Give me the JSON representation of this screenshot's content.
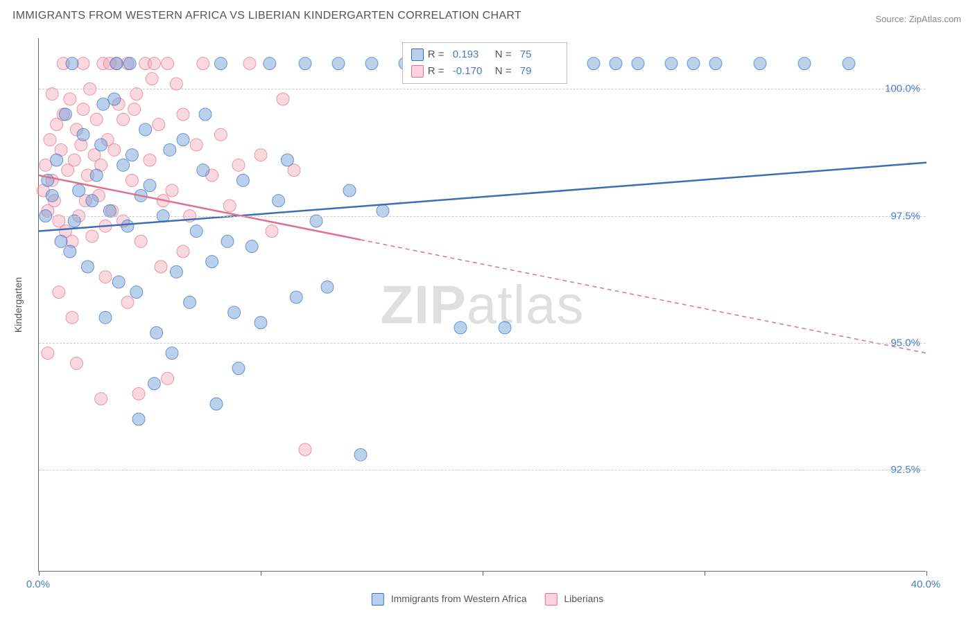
{
  "title": "IMMIGRANTS FROM WESTERN AFRICA VS LIBERIAN KINDERGARTEN CORRELATION CHART",
  "source": "Source: ZipAtlas.com",
  "ylabel": "Kindergarten",
  "watermark_bold": "ZIP",
  "watermark_light": "atlas",
  "chart": {
    "type": "scatter",
    "xlim": [
      0,
      40
    ],
    "ylim": [
      90.5,
      101
    ],
    "xtick_positions": [
      0,
      20,
      40
    ],
    "xtick_labels": [
      "0.0%",
      "",
      "40.0%"
    ],
    "xtick_minor": [
      10,
      30
    ],
    "ytick_positions": [
      92.5,
      95.0,
      97.5,
      100.0
    ],
    "ytick_labels": [
      "92.5%",
      "95.0%",
      "97.5%",
      "100.0%"
    ],
    "background_color": "#ffffff",
    "grid_color": "#cccccc",
    "marker_radius": 9,
    "marker_opacity": 0.45,
    "series": [
      {
        "name": "Immigrants from Western Africa",
        "color": "#6699d8",
        "stroke": "#3d6db5",
        "R": "0.193",
        "N": "75",
        "regression": {
          "x1": 0,
          "y1": 97.2,
          "x2": 40,
          "y2": 98.55,
          "solid_until_x": 40
        },
        "points": [
          [
            0.3,
            97.5
          ],
          [
            0.4,
            98.2
          ],
          [
            0.6,
            97.9
          ],
          [
            0.8,
            98.6
          ],
          [
            1.0,
            97.0
          ],
          [
            1.2,
            99.5
          ],
          [
            1.4,
            96.8
          ],
          [
            1.6,
            97.4
          ],
          [
            1.8,
            98.0
          ],
          [
            2.0,
            99.1
          ],
          [
            2.2,
            96.5
          ],
          [
            2.4,
            97.8
          ],
          [
            2.6,
            98.3
          ],
          [
            2.8,
            98.9
          ],
          [
            3.0,
            95.5
          ],
          [
            3.2,
            97.6
          ],
          [
            3.4,
            99.8
          ],
          [
            3.6,
            96.2
          ],
          [
            3.8,
            98.5
          ],
          [
            4.0,
            97.3
          ],
          [
            4.2,
            98.7
          ],
          [
            4.4,
            96.0
          ],
          [
            4.6,
            97.9
          ],
          [
            4.8,
            99.2
          ],
          [
            5.0,
            98.1
          ],
          [
            5.3,
            95.2
          ],
          [
            5.6,
            97.5
          ],
          [
            5.9,
            98.8
          ],
          [
            6.2,
            96.4
          ],
          [
            6.5,
            99.0
          ],
          [
            6.8,
            95.8
          ],
          [
            7.1,
            97.2
          ],
          [
            7.4,
            98.4
          ],
          [
            7.8,
            96.6
          ],
          [
            8.2,
            100.5
          ],
          [
            8.5,
            97.0
          ],
          [
            8.8,
            95.6
          ],
          [
            9.2,
            98.2
          ],
          [
            9.6,
            96.9
          ],
          [
            10.0,
            95.4
          ],
          [
            10.4,
            100.5
          ],
          [
            10.8,
            97.8
          ],
          [
            11.2,
            98.6
          ],
          [
            11.6,
            95.9
          ],
          [
            12.0,
            100.5
          ],
          [
            12.5,
            97.4
          ],
          [
            13.0,
            96.1
          ],
          [
            13.5,
            100.5
          ],
          [
            14.0,
            98.0
          ],
          [
            14.5,
            92.8
          ],
          [
            15.0,
            100.5
          ],
          [
            15.5,
            97.6
          ],
          [
            16.5,
            100.5
          ],
          [
            17.5,
            100.5
          ],
          [
            19.0,
            95.3
          ],
          [
            21.0,
            95.3
          ],
          [
            25.0,
            100.5
          ],
          [
            26.0,
            100.5
          ],
          [
            27.0,
            100.5
          ],
          [
            28.5,
            100.5
          ],
          [
            29.5,
            100.5
          ],
          [
            30.5,
            100.5
          ],
          [
            32.5,
            100.5
          ],
          [
            34.5,
            100.5
          ],
          [
            36.5,
            100.5
          ],
          [
            4.5,
            93.5
          ],
          [
            5.2,
            94.2
          ],
          [
            6.0,
            94.8
          ],
          [
            2.9,
            99.7
          ],
          [
            3.5,
            100.5
          ],
          [
            4.1,
            100.5
          ],
          [
            1.5,
            100.5
          ],
          [
            7.5,
            99.5
          ],
          [
            8.0,
            93.8
          ],
          [
            9.0,
            94.5
          ]
        ]
      },
      {
        "name": "Liberians",
        "color": "#f4a8b8",
        "stroke": "#e07090",
        "R": "-0.170",
        "N": "79",
        "regression": {
          "x1": 0,
          "y1": 98.3,
          "x2": 40,
          "y2": 94.8,
          "solid_until_x": 14.5
        },
        "points": [
          [
            0.2,
            98.0
          ],
          [
            0.3,
            98.5
          ],
          [
            0.4,
            97.6
          ],
          [
            0.5,
            99.0
          ],
          [
            0.6,
            98.2
          ],
          [
            0.7,
            97.8
          ],
          [
            0.8,
            99.3
          ],
          [
            0.9,
            97.4
          ],
          [
            1.0,
            98.8
          ],
          [
            1.1,
            99.5
          ],
          [
            1.2,
            97.2
          ],
          [
            1.3,
            98.4
          ],
          [
            1.4,
            99.8
          ],
          [
            1.5,
            97.0
          ],
          [
            1.6,
            98.6
          ],
          [
            1.7,
            99.2
          ],
          [
            1.8,
            97.5
          ],
          [
            1.9,
            98.9
          ],
          [
            2.0,
            99.6
          ],
          [
            2.1,
            97.8
          ],
          [
            2.2,
            98.3
          ],
          [
            2.3,
            100.0
          ],
          [
            2.4,
            97.1
          ],
          [
            2.5,
            98.7
          ],
          [
            2.6,
            99.4
          ],
          [
            2.7,
            97.9
          ],
          [
            2.8,
            98.5
          ],
          [
            2.9,
            100.5
          ],
          [
            3.0,
            97.3
          ],
          [
            3.1,
            99.0
          ],
          [
            3.2,
            100.5
          ],
          [
            3.3,
            97.6
          ],
          [
            3.4,
            98.8
          ],
          [
            3.5,
            100.5
          ],
          [
            3.6,
            99.7
          ],
          [
            3.8,
            97.4
          ],
          [
            4.0,
            100.5
          ],
          [
            4.2,
            98.2
          ],
          [
            4.4,
            99.9
          ],
          [
            4.6,
            97.0
          ],
          [
            4.8,
            100.5
          ],
          [
            5.0,
            98.6
          ],
          [
            5.2,
            100.5
          ],
          [
            5.4,
            99.3
          ],
          [
            5.6,
            97.8
          ],
          [
            5.8,
            100.5
          ],
          [
            6.0,
            98.0
          ],
          [
            6.2,
            100.1
          ],
          [
            6.5,
            99.5
          ],
          [
            6.8,
            97.5
          ],
          [
            7.1,
            98.9
          ],
          [
            7.4,
            100.5
          ],
          [
            7.8,
            98.3
          ],
          [
            8.2,
            99.1
          ],
          [
            8.6,
            97.7
          ],
          [
            9.0,
            98.5
          ],
          [
            9.5,
            100.5
          ],
          [
            10.0,
            98.7
          ],
          [
            10.5,
            97.2
          ],
          [
            11.0,
            99.8
          ],
          [
            11.5,
            98.4
          ],
          [
            12.0,
            92.9
          ],
          [
            0.4,
            94.8
          ],
          [
            1.7,
            94.6
          ],
          [
            2.8,
            93.9
          ],
          [
            4.5,
            94.0
          ],
          [
            5.8,
            94.3
          ],
          [
            0.9,
            96.0
          ],
          [
            1.5,
            95.5
          ],
          [
            3.0,
            96.3
          ],
          [
            4.0,
            95.8
          ],
          [
            5.5,
            96.5
          ],
          [
            6.5,
            96.8
          ],
          [
            1.1,
            100.5
          ],
          [
            0.6,
            99.9
          ],
          [
            2.0,
            100.5
          ],
          [
            3.8,
            99.4
          ],
          [
            4.3,
            99.6
          ],
          [
            5.1,
            100.2
          ]
        ]
      }
    ]
  },
  "legend_bottom": [
    {
      "label": "Immigrants from Western Africa",
      "fill": "#b8d0ee",
      "stroke": "#3d6db5"
    },
    {
      "label": "Liberians",
      "fill": "#fbd5de",
      "stroke": "#e07090"
    }
  ],
  "legend_top": {
    "rows": [
      {
        "fill": "#b8d0ee",
        "stroke": "#3d6db5",
        "R_label": "R =",
        "R": "0.193",
        "N_label": "N =",
        "N": "75"
      },
      {
        "fill": "#fbd5de",
        "stroke": "#e07090",
        "R_label": "R =",
        "R": "-0.170",
        "N_label": "N =",
        "N": "79"
      }
    ]
  }
}
